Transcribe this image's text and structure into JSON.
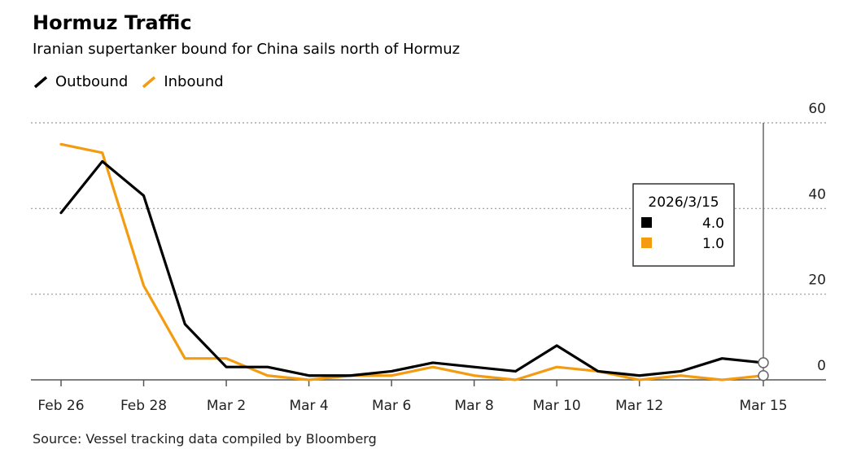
{
  "chart_data": {
    "type": "line",
    "title": "Hormuz Traffic",
    "subtitle": "Iranian supertanker bound for China sails north of Hormuz",
    "source": "Source: Vessel tracking data compiled by Bloomberg",
    "x": [
      "2026-02-26",
      "2026-02-27",
      "2026-02-28",
      "2026-03-01",
      "2026-03-02",
      "2026-03-03",
      "2026-03-04",
      "2026-03-05",
      "2026-03-06",
      "2026-03-07",
      "2026-03-08",
      "2026-03-09",
      "2026-03-10",
      "2026-03-11",
      "2026-03-12",
      "2026-03-13",
      "2026-03-14",
      "2026-03-15"
    ],
    "xticks": [
      {
        "date": "2026-02-26",
        "label": "Feb 26"
      },
      {
        "date": "2026-02-28",
        "label": "Feb 28"
      },
      {
        "date": "2026-03-02",
        "label": "Mar 2"
      },
      {
        "date": "2026-03-04",
        "label": "Mar 4"
      },
      {
        "date": "2026-03-06",
        "label": "Mar 6"
      },
      {
        "date": "2026-03-08",
        "label": "Mar 8"
      },
      {
        "date": "2026-03-10",
        "label": "Mar 10"
      },
      {
        "date": "2026-03-12",
        "label": "Mar 12"
      },
      {
        "date": "2026-03-15",
        "label": "Mar 15"
      }
    ],
    "yticks": [
      0,
      20,
      40,
      60
    ],
    "ylim": [
      0,
      60
    ],
    "y_axis_side": "right",
    "grid": "horizontal dotted",
    "legend_position": "top-left",
    "series": [
      {
        "name": "Outbound",
        "color": "#000000",
        "values": [
          39,
          51,
          43,
          13,
          3,
          3,
          1,
          1,
          2,
          4,
          3,
          2,
          8,
          2,
          1,
          2,
          5,
          4
        ]
      },
      {
        "name": "Inbound",
        "color": "#f39c12",
        "values": [
          55,
          53,
          22,
          5,
          5,
          1,
          0,
          1,
          1,
          3,
          1,
          0,
          3,
          2,
          0,
          1,
          0,
          1
        ]
      }
    ],
    "tooltip": {
      "date_label": "2026/3/15",
      "date": "2026-03-15",
      "values": [
        "4.0",
        "1.0"
      ]
    }
  }
}
